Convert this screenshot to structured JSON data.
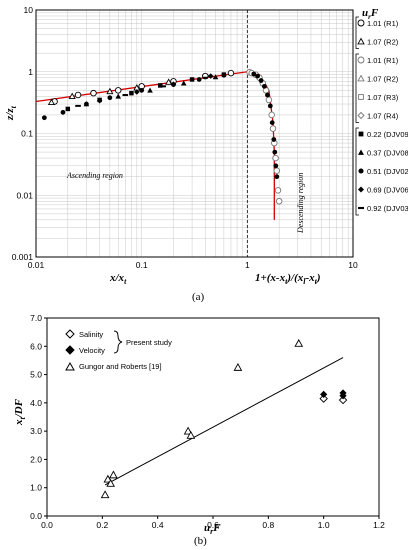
{
  "chart_data": [
    {
      "type": "scatter",
      "panel_label": "(a)",
      "xlabel_left": "x/x",
      "xlabel_left_sub": "t",
      "xlabel_right": "1+(x-x",
      "xlabel_right_rest": ")/(x",
      "xlabel_right_tail": "-x",
      "xlabel_right_sub": "t",
      "xlabel_right_sub2": "l",
      "xlabel_right_sub3": "t",
      "ylabel": "z/z",
      "ylabel_sub": "t",
      "xscale": "log",
      "yscale": "log",
      "xlim": [
        0.01,
        10
      ],
      "ylim": [
        0.001,
        10
      ],
      "x_ticks": [
        "0.01",
        "0.1",
        "1",
        "10"
      ],
      "y_ticks": [
        "0.001",
        "0.01",
        "0.1",
        "1",
        "10"
      ],
      "grid": true,
      "ascending_label": "Ascending region",
      "descending_label": "Descending region",
      "legend_header": "u",
      "legend_header_sub": "r",
      "legend_header_tail": "F",
      "legend_groups": [
        {
          "name": "Present study Salinity",
          "line1": "Present study",
          "line2": "Salinity"
        },
        {
          "name": "Present study Velocity",
          "line1": "Present study",
          "line2": "Velocity"
        },
        {
          "name": "Gungor and Roberts [19]",
          "line1": "Gungor and Roberts",
          "line2": "[19]"
        }
      ],
      "legend_entries": [
        {
          "label": "1.01 (R1)",
          "marker": "circle-open",
          "group": 0
        },
        {
          "label": "1.07 (R2)",
          "marker": "triangle-open",
          "group": 0
        },
        {
          "label": "1.01 (R1)",
          "marker": "circle-open-gray",
          "group": 1
        },
        {
          "label": "1.07 (R2)",
          "marker": "triangle-open-gray",
          "group": 1
        },
        {
          "label": "1.07 (R3)",
          "marker": "square-open-gray",
          "group": 1
        },
        {
          "label": "1.07 (R4)",
          "marker": "diamond-open-gray",
          "group": 1
        },
        {
          "label": "0.22 (DJV09)",
          "marker": "square-filled",
          "group": 2
        },
        {
          "label": "0.37 (DJV08)",
          "marker": "triangle-filled",
          "group": 2
        },
        {
          "label": "0.51 (DJV02)",
          "marker": "circle-filled",
          "group": 2
        },
        {
          "label": "0.69 (DJV06)",
          "marker": "diamond-filled",
          "group": 2
        },
        {
          "label": "0.92 (DJV03)",
          "marker": "dash-filled",
          "group": 2
        }
      ],
      "series": [
        {
          "name": "1.01 (R1)",
          "marker": "circle-open",
          "x": [
            0.015,
            0.025,
            0.035,
            0.06,
            0.1,
            0.2,
            0.4,
            0.7
          ],
          "y": [
            0.33,
            0.42,
            0.45,
            0.5,
            0.58,
            0.7,
            0.85,
            0.95
          ]
        },
        {
          "name": "1.07 (R2)",
          "marker": "triangle-open",
          "x": [
            0.014,
            0.022,
            0.05,
            0.09,
            0.18
          ],
          "y": [
            0.32,
            0.4,
            0.48,
            0.55,
            0.68
          ]
        },
        {
          "name": "0.22 (DJV09)",
          "marker": "square-filled",
          "x": [
            0.02,
            0.04,
            0.08,
            0.15,
            0.3,
            0.6
          ],
          "y": [
            0.25,
            0.35,
            0.45,
            0.6,
            0.75,
            0.9
          ]
        },
        {
          "name": "0.37 (DJV08)",
          "marker": "triangle-filled",
          "x": [
            0.03,
            0.06,
            0.12,
            0.25,
            0.5
          ],
          "y": [
            0.3,
            0.4,
            0.5,
            0.65,
            0.82
          ]
        },
        {
          "name": "0.51 (DJV02)",
          "marker": "circle-filled",
          "x": [
            0.012,
            0.018,
            0.03,
            0.05,
            0.1,
            0.2,
            0.35,
            0.6
          ],
          "y": [
            0.18,
            0.22,
            0.3,
            0.38,
            0.5,
            0.62,
            0.75,
            0.88
          ]
        },
        {
          "name": "0.69 (DJV06)",
          "marker": "diamond-filled",
          "x": [
            0.04,
            0.09,
            0.2,
            0.45
          ],
          "y": [
            0.34,
            0.47,
            0.63,
            0.85
          ]
        },
        {
          "name": "0.92 (DJV03)",
          "marker": "dash-filled",
          "x": [
            0.025,
            0.07,
            0.16,
            0.4
          ],
          "y": [
            0.28,
            0.42,
            0.58,
            0.8
          ]
        },
        {
          "name": "Descending data",
          "marker": "circle-open-gray",
          "x": [
            1.05,
            1.1,
            1.2,
            1.3,
            1.4,
            1.5,
            1.6,
            1.7,
            1.75,
            1.8,
            1.85,
            1.9,
            1.95,
            2.0
          ],
          "y": [
            0.98,
            0.95,
            0.9,
            0.8,
            0.65,
            0.5,
            0.35,
            0.2,
            0.12,
            0.07,
            0.04,
            0.025,
            0.012,
            0.008
          ]
        },
        {
          "name": "Descending data filled",
          "marker": "circle-filled",
          "x": [
            1.15,
            1.25,
            1.35,
            1.45,
            1.55,
            1.65,
            1.72,
            1.78,
            1.82,
            1.86,
            1.9
          ],
          "y": [
            0.92,
            0.85,
            0.72,
            0.58,
            0.42,
            0.28,
            0.15,
            0.08,
            0.05,
            0.03,
            0.02
          ]
        }
      ],
      "fit_line_ascending": {
        "x": [
          0.01,
          1
        ],
        "y": [
          0.33,
          1
        ]
      },
      "fit_line_descending": {
        "x": [
          1,
          1.3,
          1.6,
          1.75,
          1.8,
          1.8
        ],
        "y": [
          1,
          0.9,
          0.5,
          0.15,
          0.05,
          0.004
        ]
      },
      "vertical_divider_x": 1
    },
    {
      "type": "scatter",
      "panel_label": "(b)",
      "xlabel": "u",
      "xlabel_sub": "r",
      "xlabel_tail": "F",
      "ylabel": "x",
      "ylabel_sub": "t",
      "ylabel_tail": "/DF",
      "xlim": [
        0.0,
        1.2
      ],
      "ylim": [
        0.0,
        7.0
      ],
      "x_ticks": [
        "0.0",
        "0.2",
        "0.4",
        "0.6",
        "0.8",
        "1.0",
        "1.2"
      ],
      "y_ticks": [
        "0.0",
        "1.0",
        "2.0",
        "3.0",
        "4.0",
        "5.0",
        "6.0",
        "7.0"
      ],
      "legend_salinity": "Salinity",
      "legend_velocity": "Velocity",
      "legend_present": "Present study",
      "legend_gungor": "Gungor and Roberts  [19]",
      "series": [
        {
          "name": "Salinity",
          "marker": "diamond-open",
          "x": [
            1.0,
            1.07
          ],
          "y": [
            4.15,
            4.1
          ]
        },
        {
          "name": "Velocity",
          "marker": "diamond-filled",
          "x": [
            1.0,
            1.07,
            1.07
          ],
          "y": [
            4.3,
            4.35,
            4.25
          ]
        },
        {
          "name": "Gungor and Roberts [19]",
          "marker": "triangle-open",
          "x": [
            0.21,
            0.22,
            0.23,
            0.24,
            0.51,
            0.52,
            0.69,
            0.91
          ],
          "y": [
            0.75,
            1.3,
            1.15,
            1.45,
            3.0,
            2.85,
            5.25,
            6.1
          ]
        }
      ],
      "fit_line": {
        "x": [
          0.21,
          1.07
        ],
        "y": [
          1.1,
          5.6
        ]
      }
    }
  ]
}
